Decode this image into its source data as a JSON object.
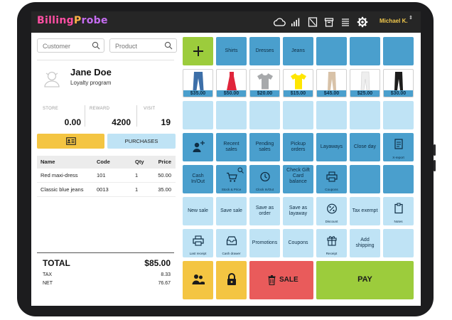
{
  "topbar": {
    "logo_part1": "Billing",
    "logo_part2": "P",
    "logo_part3": "robe",
    "user_name": "Michael K.",
    "user_chevron": "⇕",
    "icons": [
      "cloud-icon",
      "signal-icon",
      "register-icon",
      "archive-icon",
      "list-icon",
      "gear-icon"
    ]
  },
  "search": {
    "customer_placeholder": "Customer",
    "product_placeholder": "Product"
  },
  "customer": {
    "name": "Jane Doe",
    "program": "Loyalty program",
    "stats": [
      {
        "label": "STORE",
        "value": "0.00"
      },
      {
        "label": "REWARD",
        "value": "4200"
      },
      {
        "label": "VISIT",
        "value": "19"
      }
    ],
    "purchases_label": "PURCHASES"
  },
  "cart": {
    "headers": {
      "name": "Name",
      "code": "Code",
      "qty": "Qty",
      "price": "Price"
    },
    "rows": [
      {
        "name": "Red maxi-dress",
        "code": "101",
        "qty": "1",
        "price": "50.00"
      },
      {
        "name": "Classic blue jeans",
        "code": "0013",
        "qty": "1",
        "price": "35.00"
      }
    ]
  },
  "totals": {
    "total_label": "TOTAL",
    "total_value": "$85.00",
    "tax_label": "TAX",
    "tax_value": "8.33",
    "net_label": "NET",
    "net_value": "76.67"
  },
  "tiles": {
    "categories": [
      "Shirts",
      "Dresses",
      "Jeans"
    ],
    "products": [
      {
        "price": "$35.00",
        "item": "blue-jeans",
        "color": "#3d6fa8"
      },
      {
        "price": "$50.00",
        "item": "red-dress",
        "color": "#e0253b"
      },
      {
        "price": "$20.00",
        "item": "grey-tshirt",
        "color": "#a7a9ab"
      },
      {
        "price": "$15.00",
        "item": "yellow-tshirt",
        "color": "#ffe600"
      },
      {
        "price": "$45.00",
        "item": "beige-pants",
        "color": "#d8c2a8"
      },
      {
        "price": "$25.00",
        "item": "white-pants",
        "color": "#eeeeee"
      },
      {
        "price": "$30.00",
        "item": "black-pants",
        "color": "#1c1c1c"
      }
    ],
    "recent_sales": "Recent sales",
    "pending_sales": "Pending sales",
    "pickup_orders": "Pickup orders",
    "layaways": "Layaways",
    "close_day": "Close day",
    "x_report": "X-report",
    "cash_in_out": "Cash In/Out",
    "stock_price": "Stock & Price",
    "clock_in_out": "Clock In/Out",
    "check_gift_card": "Check Gift Card balance",
    "coupons_small": "Coupons",
    "new_sale": "New sale",
    "save_sale": "Save sale",
    "save_as_order": "Save as order",
    "save_as_layaway": "Save as layaway",
    "discount": "Discount",
    "tax_exempt": "Tax exempt",
    "notes": "Notes",
    "last_receipt": "Last receipt",
    "cash_drawer": "Cash drawer",
    "promotions": "Promotions",
    "coupons": "Coupons",
    "receipt": "Receipt",
    "add_shipping": "Add shipping",
    "sale_label": "SALE",
    "pay_label": "PAY"
  },
  "colors": {
    "dark_tile": "#4a9fcd",
    "light_tile": "#bfe3f5",
    "green": "#9ccc3c",
    "yellow": "#f4c542",
    "red": "#e95b5b",
    "topbar": "#262626"
  }
}
